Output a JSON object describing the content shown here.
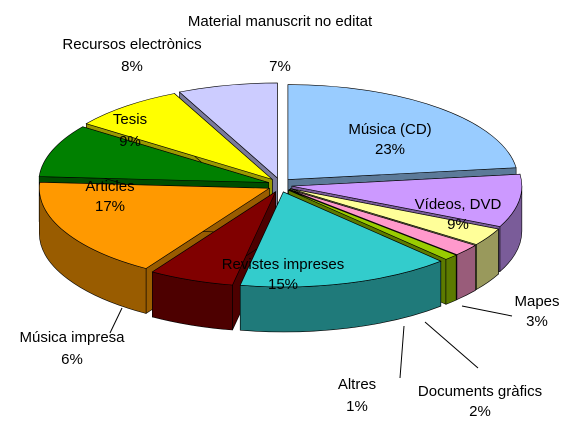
{
  "chart_data": {
    "type": "pie3d",
    "categories": [
      "Música (CD)",
      "Vídeos, DVD",
      "Mapes",
      "Documents gràfics",
      "Altres",
      "Revistes impreses",
      "Música impresa",
      "Articles",
      "Tesis",
      "Recursos electrònics",
      "Material manuscrit no editat"
    ],
    "values": [
      23,
      9,
      3,
      2,
      1,
      15,
      6,
      17,
      9,
      8,
      7
    ],
    "value_labels": [
      "23%",
      "9%",
      "3%",
      "2%",
      "1%",
      "15%",
      "6%",
      "17%",
      "9%",
      "8%",
      "7%"
    ],
    "colors": [
      "#99ccff",
      "#cc99ff",
      "#ffff99",
      "#ff99cc",
      "#99cc00",
      "#33cccc",
      "#800000",
      "#ff9900",
      "#008000",
      "#ffff00",
      "#ccccff"
    ]
  }
}
